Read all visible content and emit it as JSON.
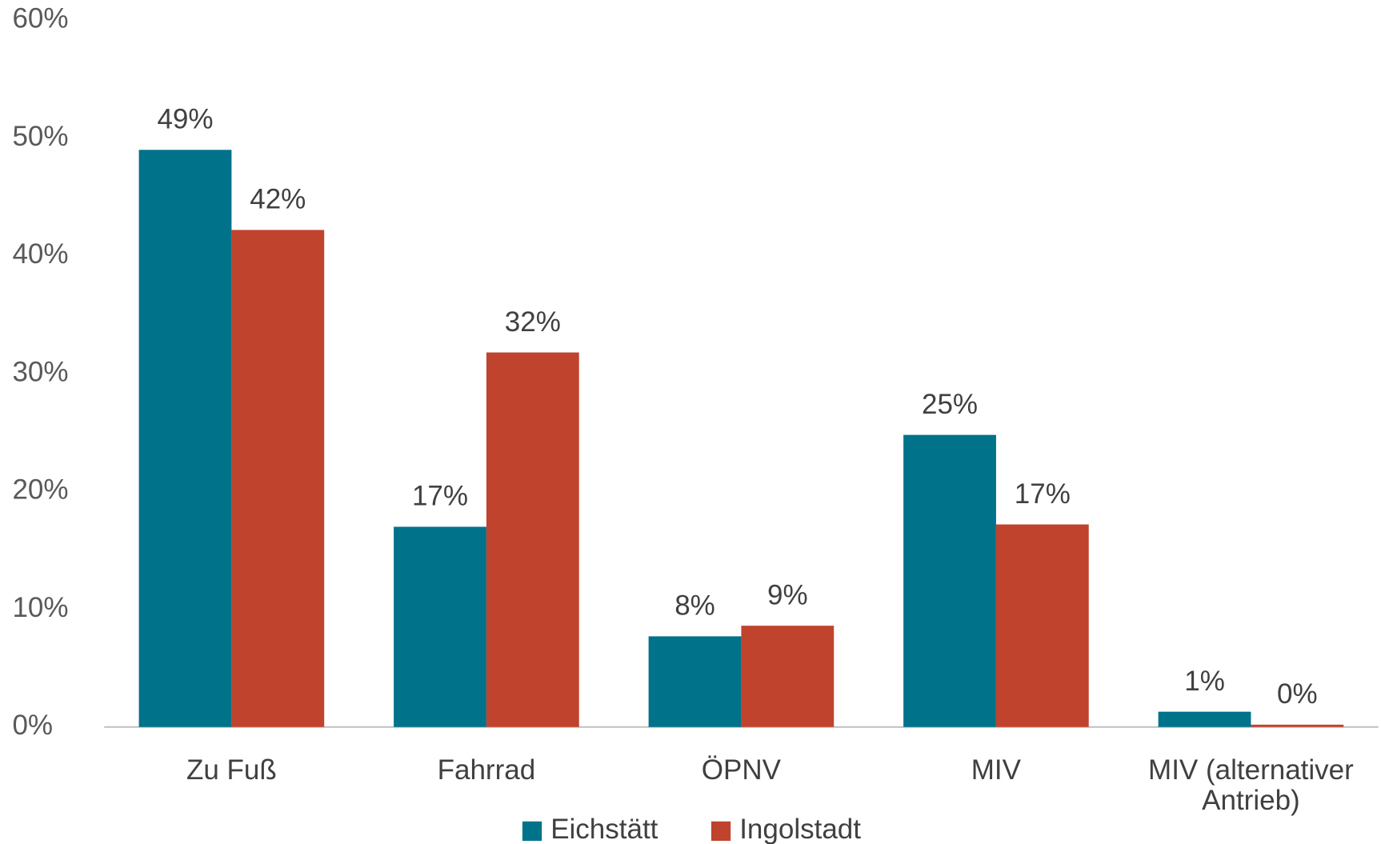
{
  "chart_data": {
    "type": "bar",
    "categories": [
      "Zu Fuß",
      "Fahrrad",
      "ÖPNV",
      "MIV",
      "MIV (alternativer Antrieb)"
    ],
    "series": [
      {
        "name": "Eichstätt",
        "color": "#00728a",
        "values": [
          49,
          17,
          7.7,
          24.8,
          1.3
        ],
        "value_labels": [
          "49%",
          "17%",
          "8%",
          "25%",
          "1%"
        ]
      },
      {
        "name": "Ingolstadt",
        "color": "#c0432e",
        "values": [
          42.2,
          31.8,
          8.6,
          17.2,
          0.2
        ],
        "value_labels": [
          "42%",
          "32%",
          "9%",
          "17%",
          "0%"
        ]
      }
    ],
    "ylim": [
      0,
      60
    ],
    "yticks": [
      {
        "value": 0,
        "label": "0%"
      },
      {
        "value": 10,
        "label": "10%"
      },
      {
        "value": 20,
        "label": "20%"
      },
      {
        "value": 30,
        "label": "30%"
      },
      {
        "value": 40,
        "label": "40%"
      },
      {
        "value": 50,
        "label": "50%"
      },
      {
        "value": 60,
        "label": "60%"
      }
    ],
    "legend": "bottom"
  }
}
